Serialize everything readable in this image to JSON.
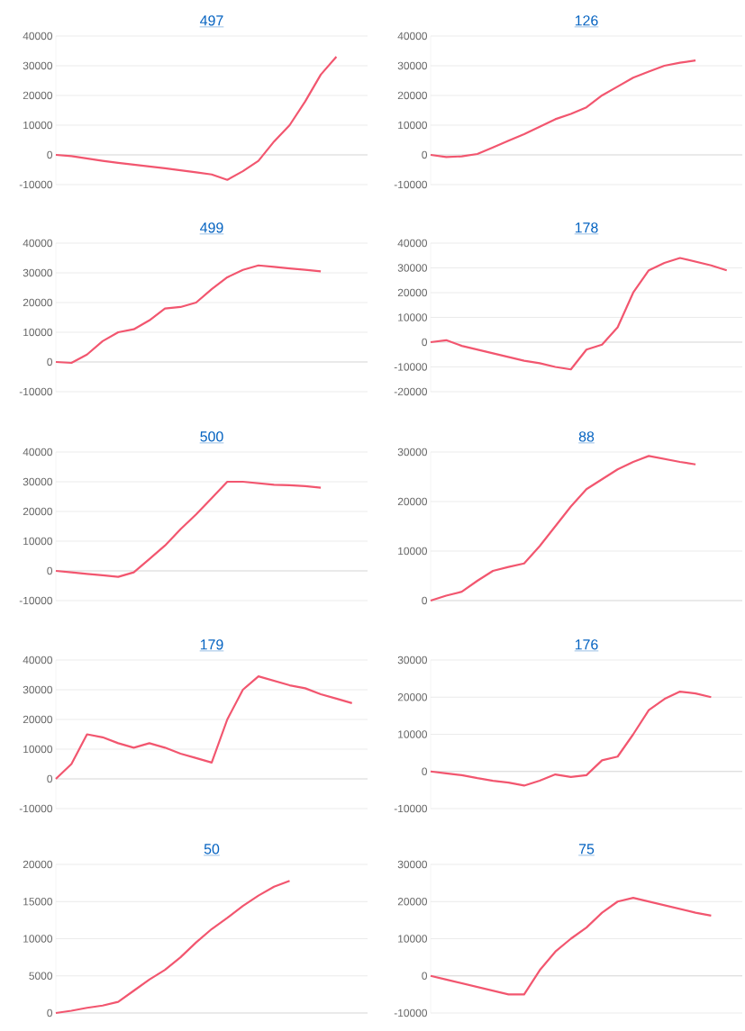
{
  "chart_data": [
    {
      "type": "line",
      "title": "497",
      "categories": [
        null,
        null,
        null,
        null,
        null,
        null,
        null,
        null,
        null,
        null,
        null,
        null,
        null,
        null,
        null,
        null,
        null,
        null,
        null,
        null,
        null
      ],
      "values": [
        0,
        -400,
        -1200,
        -2000,
        -2700,
        -3300,
        -3900,
        -4500,
        -5200,
        -5900,
        -6600,
        -8400,
        -5500,
        -2000,
        4500,
        10000,
        18000,
        27000,
        33000,
        null,
        null
      ],
      "color": "#f2566f",
      "ylim": [
        -10000,
        40000
      ],
      "yticks": [
        -10000,
        0,
        10000,
        20000,
        30000,
        40000
      ],
      "grid": "y",
      "tick_labels": "y"
    },
    {
      "type": "line",
      "title": "126",
      "categories": [
        null,
        null,
        null,
        null,
        null,
        null,
        null,
        null,
        null,
        null,
        null,
        null,
        null,
        null,
        null,
        null,
        null,
        null,
        null,
        null,
        null
      ],
      "values": [
        0,
        -700,
        -500,
        300,
        2500,
        4800,
        7000,
        9500,
        12000,
        13800,
        16000,
        20000,
        23000,
        26000,
        28000,
        30000,
        31000,
        31800,
        null,
        null,
        null
      ],
      "color": "#f2566f",
      "ylim": [
        -10000,
        40000
      ],
      "yticks": [
        -10000,
        0,
        10000,
        20000,
        30000,
        40000
      ],
      "grid": "y",
      "tick_labels": "y"
    },
    {
      "type": "line",
      "title": "499",
      "categories": [
        null,
        null,
        null,
        null,
        null,
        null,
        null,
        null,
        null,
        null,
        null,
        null,
        null,
        null,
        null,
        null,
        null,
        null,
        null,
        null,
        null
      ],
      "values": [
        0,
        -300,
        2500,
        7000,
        10000,
        11000,
        14000,
        18000,
        18500,
        20000,
        24500,
        28500,
        31000,
        32500,
        32000,
        31500,
        31000,
        30500,
        null,
        null,
        null
      ],
      "color": "#f2566f",
      "ylim": [
        -10000,
        40000
      ],
      "yticks": [
        -10000,
        0,
        10000,
        20000,
        30000,
        40000
      ],
      "grid": "y",
      "tick_labels": "y"
    },
    {
      "type": "line",
      "title": "178",
      "categories": [
        null,
        null,
        null,
        null,
        null,
        null,
        null,
        null,
        null,
        null,
        null,
        null,
        null,
        null,
        null,
        null,
        null,
        null,
        null,
        null,
        null
      ],
      "values": [
        0,
        800,
        -1500,
        -3000,
        -4500,
        -6000,
        -7500,
        -8500,
        -10000,
        -11000,
        -3000,
        -1000,
        6000,
        20000,
        29000,
        32000,
        34000,
        32500,
        31000,
        29000,
        null
      ],
      "color": "#f2566f",
      "ylim": [
        -20000,
        40000
      ],
      "yticks": [
        -20000,
        -10000,
        0,
        10000,
        20000,
        30000,
        40000
      ],
      "grid": "y",
      "tick_labels": "y"
    },
    {
      "type": "line",
      "title": "500",
      "categories": [
        null,
        null,
        null,
        null,
        null,
        null,
        null,
        null,
        null,
        null,
        null,
        null,
        null,
        null,
        null,
        null,
        null,
        null,
        null,
        null,
        null
      ],
      "values": [
        0,
        -500,
        -1000,
        -1500,
        -2000,
        -500,
        4000,
        8500,
        14000,
        19000,
        24500,
        30000,
        30000,
        29500,
        29000,
        28800,
        28500,
        28000,
        null,
        null,
        null
      ],
      "color": "#f2566f",
      "ylim": [
        -10000,
        40000
      ],
      "yticks": [
        -10000,
        0,
        10000,
        20000,
        30000,
        40000
      ],
      "grid": "y",
      "tick_labels": "y"
    },
    {
      "type": "line",
      "title": "88",
      "categories": [
        null,
        null,
        null,
        null,
        null,
        null,
        null,
        null,
        null,
        null,
        null,
        null,
        null,
        null,
        null,
        null,
        null,
        null,
        null,
        null,
        null
      ],
      "values": [
        0,
        1000,
        1800,
        4000,
        6000,
        6800,
        7500,
        11000,
        15000,
        19000,
        22500,
        24500,
        26500,
        28000,
        29200,
        28600,
        28000,
        27500,
        null,
        null,
        null
      ],
      "color": "#f2566f",
      "ylim": [
        0,
        30000
      ],
      "yticks": [
        0,
        10000,
        20000,
        30000
      ],
      "grid": "y",
      "tick_labels": "y"
    },
    {
      "type": "line",
      "title": "179",
      "categories": [
        null,
        null,
        null,
        null,
        null,
        null,
        null,
        null,
        null,
        null,
        null,
        null,
        null,
        null,
        null,
        null,
        null,
        null,
        null,
        null,
        null
      ],
      "values": [
        0,
        5000,
        15000,
        14000,
        12000,
        10500,
        12000,
        10500,
        8500,
        7000,
        5500,
        20000,
        30000,
        34500,
        33000,
        31500,
        30500,
        28500,
        27000,
        25500,
        null
      ],
      "color": "#f2566f",
      "ylim": [
        -10000,
        40000
      ],
      "yticks": [
        -10000,
        0,
        10000,
        20000,
        30000,
        40000
      ],
      "grid": "y",
      "tick_labels": "y"
    },
    {
      "type": "line",
      "title": "176",
      "categories": [
        null,
        null,
        null,
        null,
        null,
        null,
        null,
        null,
        null,
        null,
        null,
        null,
        null,
        null,
        null,
        null,
        null,
        null,
        null,
        null,
        null
      ],
      "values": [
        0,
        -500,
        -1000,
        -1800,
        -2500,
        -3000,
        -3800,
        -2500,
        -800,
        -1500,
        -1000,
        3000,
        4000,
        10000,
        16500,
        19500,
        21500,
        21000,
        20000,
        null,
        null
      ],
      "color": "#f2566f",
      "ylim": [
        -10000,
        30000
      ],
      "yticks": [
        -10000,
        0,
        10000,
        20000,
        30000
      ],
      "grid": "y",
      "tick_labels": "y"
    },
    {
      "type": "line",
      "title": "50",
      "categories": [
        null,
        null,
        null,
        null,
        null,
        null,
        null,
        null,
        null,
        null,
        null,
        null,
        null,
        null,
        null,
        null,
        null,
        null,
        null,
        null,
        null
      ],
      "values": [
        0,
        300,
        700,
        1000,
        1500,
        3000,
        4500,
        5800,
        7500,
        9500,
        11300,
        12800,
        14400,
        15800,
        17000,
        17800,
        null,
        null,
        null,
        null,
        null
      ],
      "color": "#f2566f",
      "ylim": [
        0,
        20000
      ],
      "yticks": [
        0,
        5000,
        10000,
        15000,
        20000
      ],
      "grid": "y",
      "tick_labels": "y"
    },
    {
      "type": "line",
      "title": "75",
      "categories": [
        null,
        null,
        null,
        null,
        null,
        null,
        null,
        null,
        null,
        null,
        null,
        null,
        null,
        null,
        null,
        null,
        null,
        null,
        null,
        null,
        null
      ],
      "values": [
        0,
        -1000,
        -2000,
        -3000,
        -4000,
        -5000,
        -5000,
        1500,
        6500,
        10000,
        13000,
        17000,
        20000,
        21000,
        20000,
        19000,
        18000,
        17000,
        16200,
        null,
        null
      ],
      "color": "#f2566f",
      "ylim": [
        -10000,
        30000
      ],
      "yticks": [
        -10000,
        0,
        10000,
        20000,
        30000
      ],
      "grid": "y",
      "tick_labels": "y"
    }
  ]
}
